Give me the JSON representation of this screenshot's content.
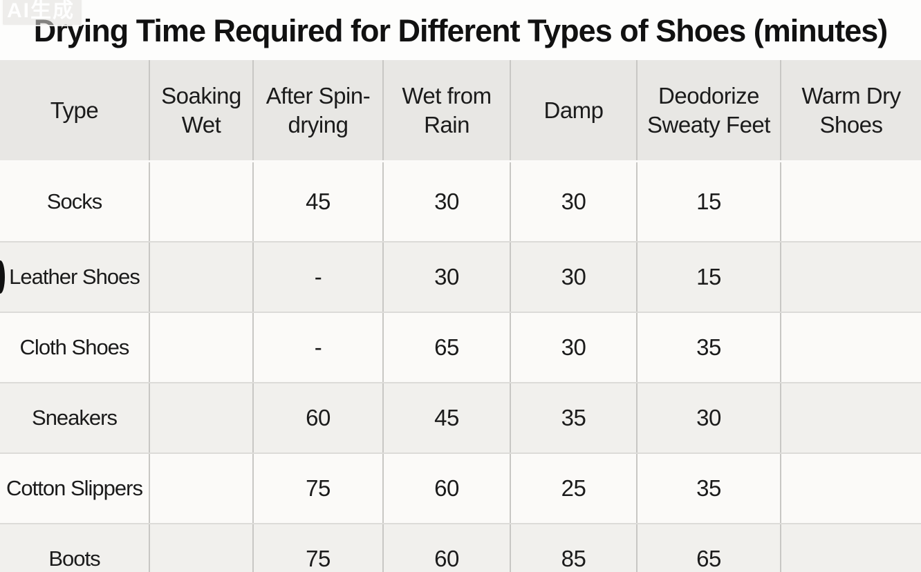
{
  "watermark": "AI生成",
  "colors": {
    "header_bg": "#e8e7e4",
    "row_light": "#fbfaf8",
    "row_dark": "#f1f0ed",
    "grid_line": "#c8c7c4",
    "text": "#1b1b1b"
  },
  "chart_data": {
    "type": "table",
    "title": "Drying Time Required for Different Types of Shoes (minutes)",
    "columns": [
      "Type",
      "Soaking Wet",
      "After Spin-drying",
      "Wet from Rain",
      "Damp",
      "Deodorize Sweaty Feet",
      "Warm Dry Shoes"
    ],
    "rows": [
      [
        "Socks",
        "",
        "45",
        "30",
        "30",
        "15",
        ""
      ],
      [
        "Leather Shoes",
        "",
        "-",
        "30",
        "30",
        "15",
        ""
      ],
      [
        "Cloth Shoes",
        "",
        "-",
        "65",
        "30",
        "35",
        ""
      ],
      [
        "Sneakers",
        "",
        "60",
        "45",
        "35",
        "30",
        ""
      ],
      [
        "Cotton Slippers",
        "",
        "75",
        "60",
        "25",
        "35",
        ""
      ],
      [
        "Boots",
        "",
        "75",
        "60",
        "85",
        "65",
        ""
      ]
    ]
  }
}
